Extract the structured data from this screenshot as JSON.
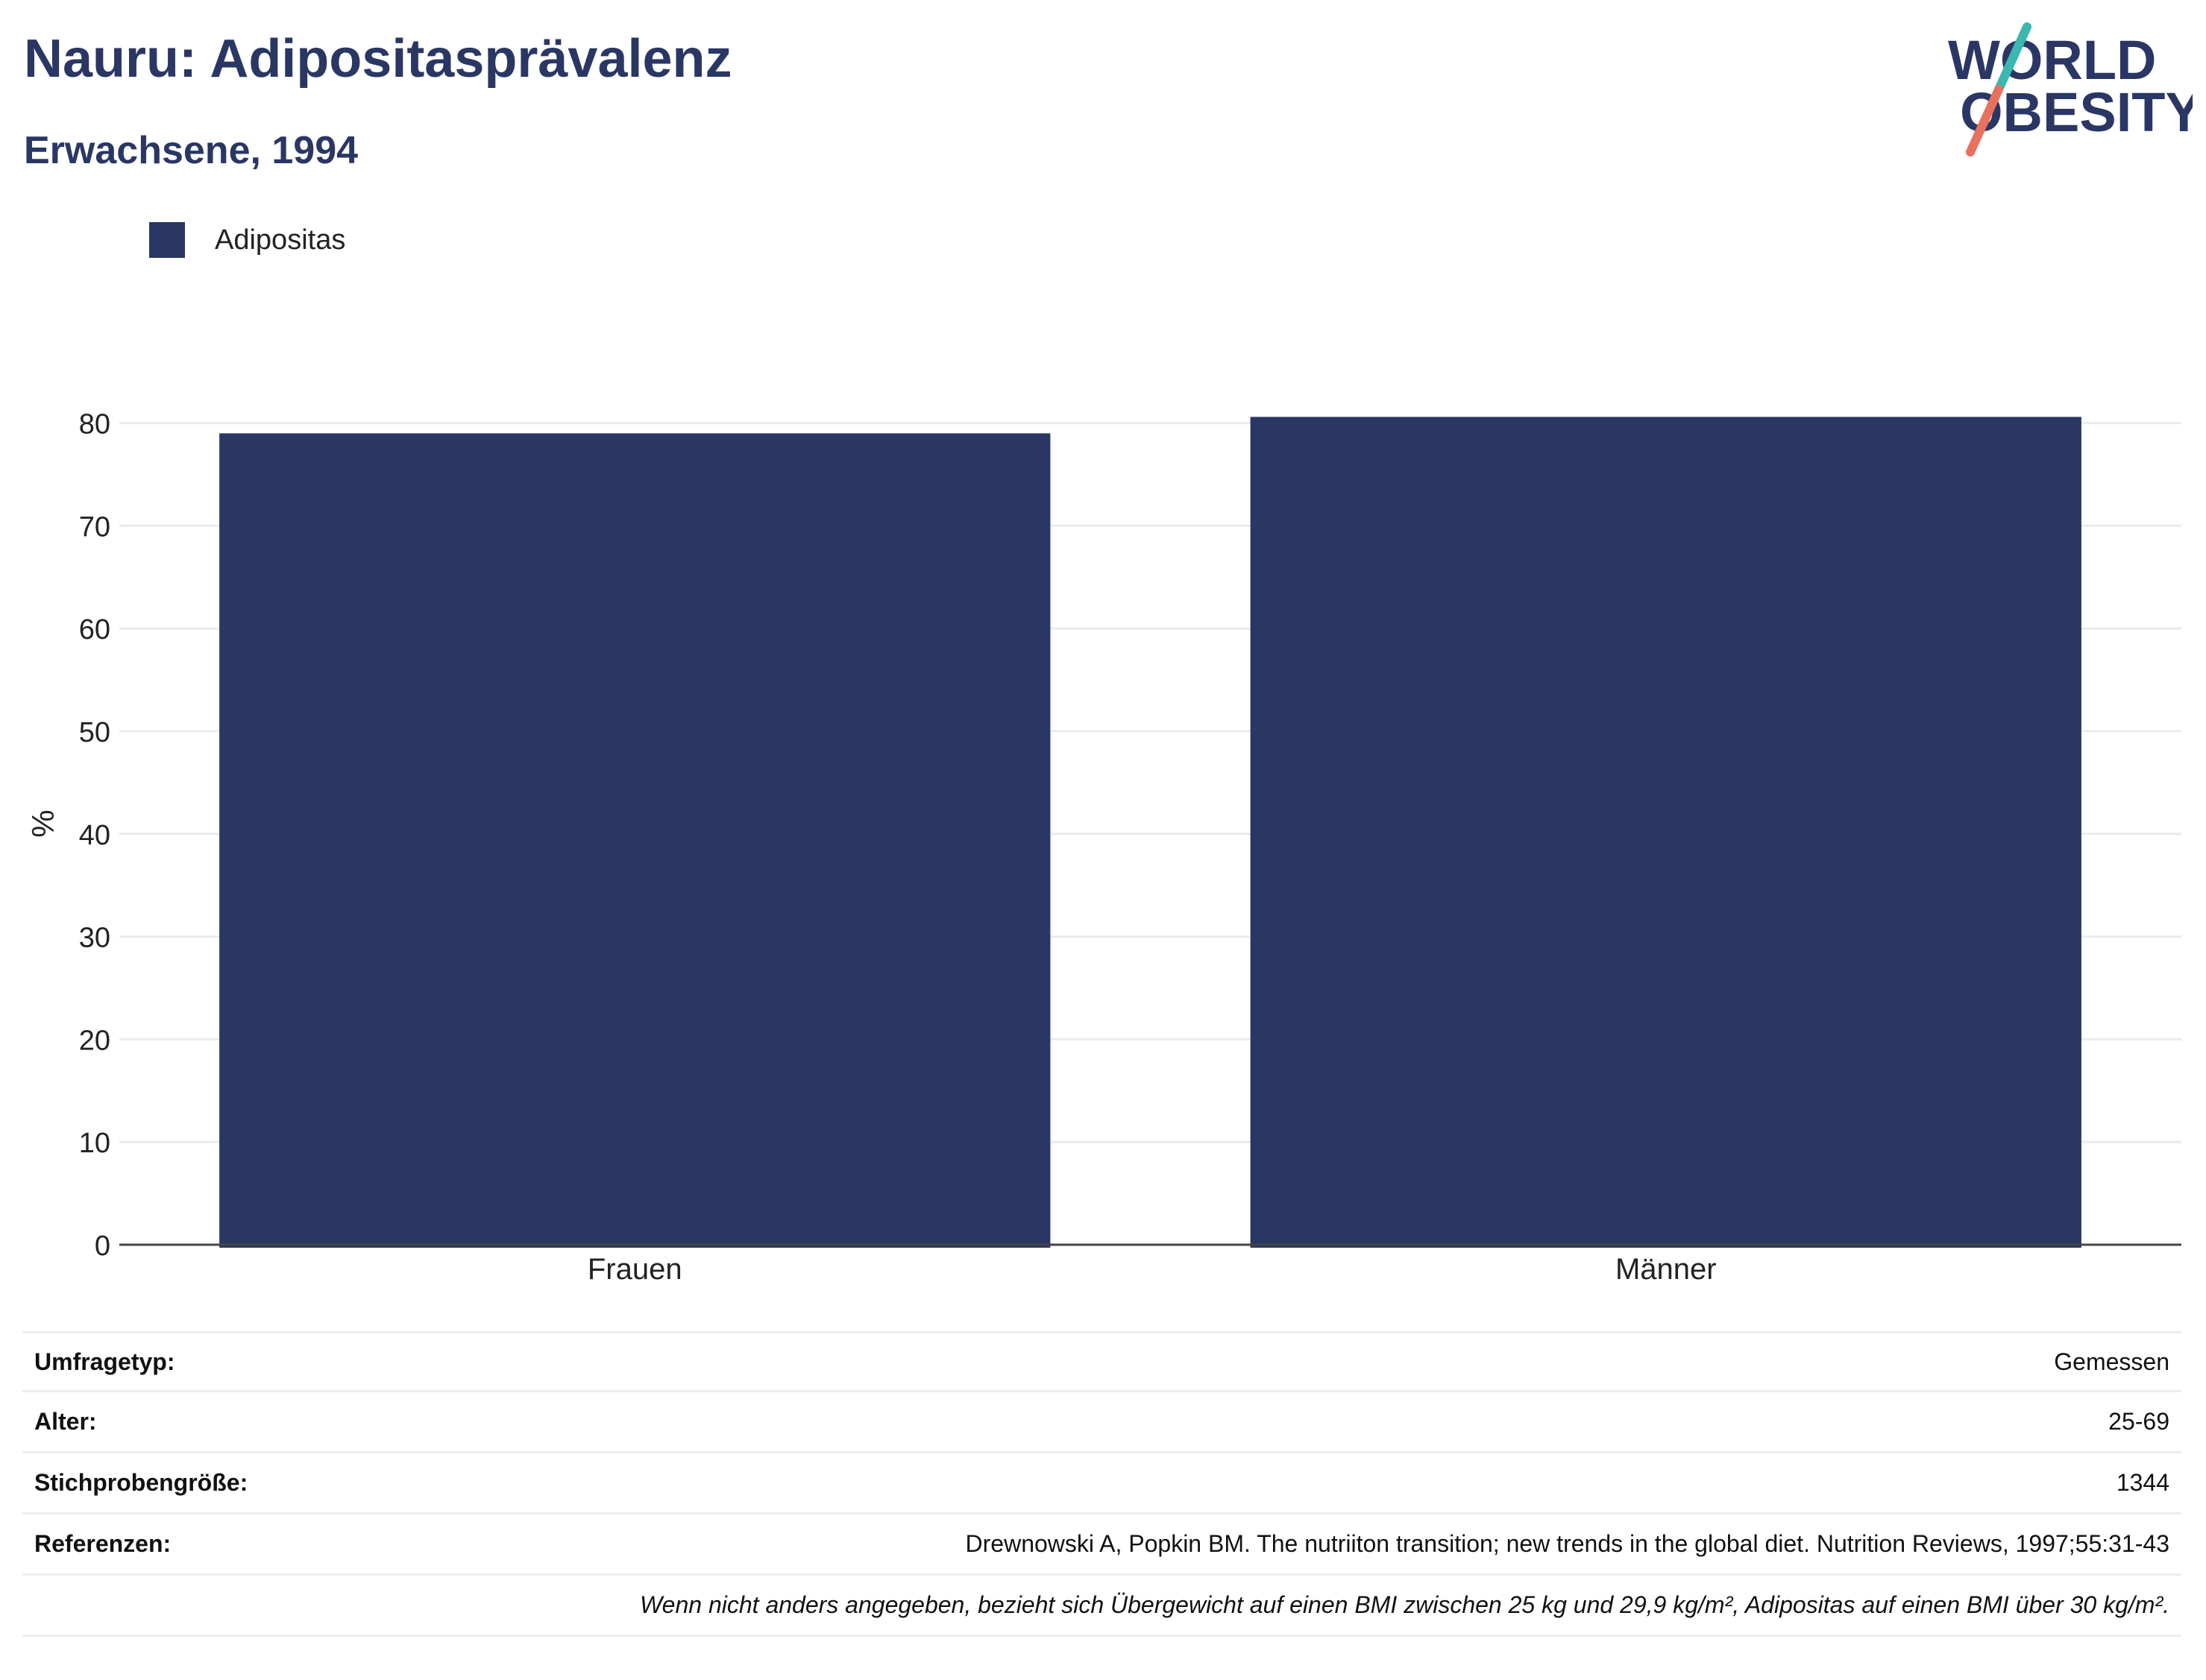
{
  "header": {
    "title": "Nauru: Adipositasprävalenz",
    "subtitle": "Erwachsene, 1994"
  },
  "logo": {
    "line1": "WORLD",
    "line2": "OBESITY",
    "colors": {
      "text": "#2a3764",
      "slash_top": "#3bb7b0",
      "slash_bottom": "#e8705f"
    }
  },
  "legend": {
    "label": "Adipositas",
    "color": "#2a3764"
  },
  "chart_data": {
    "type": "bar",
    "categories": [
      "Frauen",
      "Männer"
    ],
    "series": [
      {
        "name": "Adipositas",
        "values": [
          79.0,
          80.6
        ],
        "color": "#2a3764"
      }
    ],
    "title": "Nauru: Adipositasprävalenz",
    "subtitle": "Erwachsene, 1994",
    "xlabel": "",
    "ylabel": "%",
    "ylim": [
      0,
      82
    ],
    "yticks": [
      0,
      10,
      20,
      30,
      40,
      50,
      60,
      70,
      80
    ],
    "grid": true,
    "legend_position": "top-left"
  },
  "metadata": {
    "rows": [
      {
        "key": "Umfragetyp:",
        "value": "Gemessen"
      },
      {
        "key": "Alter:",
        "value": "25-69"
      },
      {
        "key": "Stichprobengröße:",
        "value": "1344"
      },
      {
        "key": "Referenzen:",
        "value": "Drewnowski A, Popkin BM. The nutriiton transition; new trends in the global diet. Nutrition Reviews, 1997;55:31-43"
      }
    ],
    "note": "Wenn nicht anders angegeben, bezieht sich Übergewicht auf einen BMI zwischen 25 kg und 29,9 kg/m², Adipositas auf einen BMI über 30 kg/m²."
  }
}
